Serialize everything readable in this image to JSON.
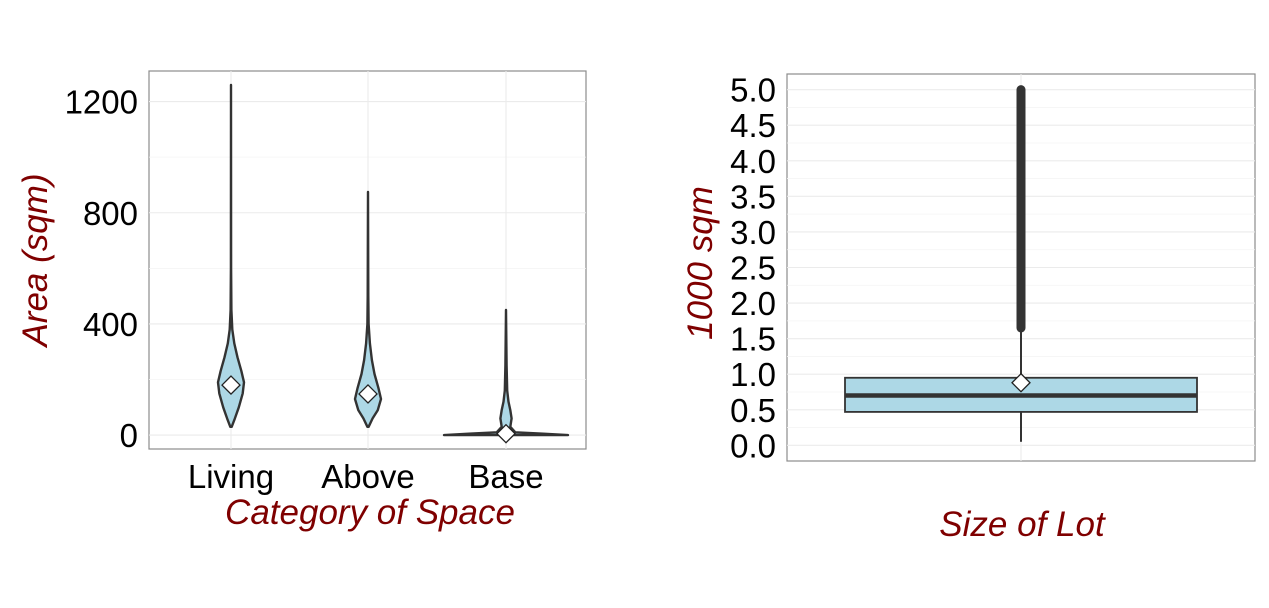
{
  "chart_data": [
    {
      "type": "violin",
      "title": "",
      "xlabel": "Category of Space",
      "ylabel": "Area (sqm)",
      "categories": [
        "Living",
        "Above",
        "Base"
      ],
      "yticks": [
        0,
        400,
        800,
        1200
      ],
      "ylim": [
        -50,
        1310
      ],
      "grid": true,
      "fill_color": "#add8e6",
      "mean_marker": "white-diamond",
      "series": [
        {
          "category": "Living",
          "min": 30,
          "max": 1260,
          "mean": 180,
          "density": [
            [
              30,
              0.05
            ],
            [
              60,
              0.3
            ],
            [
              100,
              0.6
            ],
            [
              150,
              0.9
            ],
            [
              190,
              1.0
            ],
            [
              230,
              0.8
            ],
            [
              280,
              0.5
            ],
            [
              330,
              0.25
            ],
            [
              380,
              0.1
            ],
            [
              450,
              0.03
            ],
            [
              600,
              0.01
            ],
            [
              1260,
              0.0
            ]
          ]
        },
        {
          "category": "Above",
          "min": 30,
          "max": 875,
          "mean": 148,
          "density": [
            [
              30,
              0.05
            ],
            [
              60,
              0.35
            ],
            [
              90,
              0.75
            ],
            [
              130,
              1.0
            ],
            [
              170,
              0.8
            ],
            [
              220,
              0.5
            ],
            [
              270,
              0.3
            ],
            [
              330,
              0.15
            ],
            [
              400,
              0.05
            ],
            [
              500,
              0.02
            ],
            [
              875,
              0.0
            ]
          ]
        },
        {
          "category": "Base",
          "min": 0,
          "max": 450,
          "mean": 5,
          "density": [
            [
              0,
              1.0
            ],
            [
              5,
              0.6
            ],
            [
              10,
              0.15
            ],
            [
              30,
              0.07
            ],
            [
              60,
              0.09
            ],
            [
              90,
              0.07
            ],
            [
              120,
              0.04
            ],
            [
              160,
              0.02
            ],
            [
              250,
              0.01
            ],
            [
              450,
              0.0
            ]
          ]
        }
      ]
    },
    {
      "type": "box",
      "title": "",
      "xlabel": "Size of Lot",
      "ylabel": "1000 sqm",
      "yticks": [
        "0.0",
        "0.5",
        "1.0",
        "1.5",
        "2.0",
        "2.5",
        "3.0",
        "3.5",
        "4.0",
        "4.5",
        "5.0"
      ],
      "ylim": [
        -0.22,
        5.22
      ],
      "grid": true,
      "fill_color": "#add8e6",
      "box": {
        "whisker_low": 0.05,
        "q1": 0.47,
        "median": 0.7,
        "q3": 0.95,
        "whisker_high": 1.65,
        "mean": 0.88,
        "outliers_range": [
          1.65,
          5.0
        ]
      }
    }
  ]
}
